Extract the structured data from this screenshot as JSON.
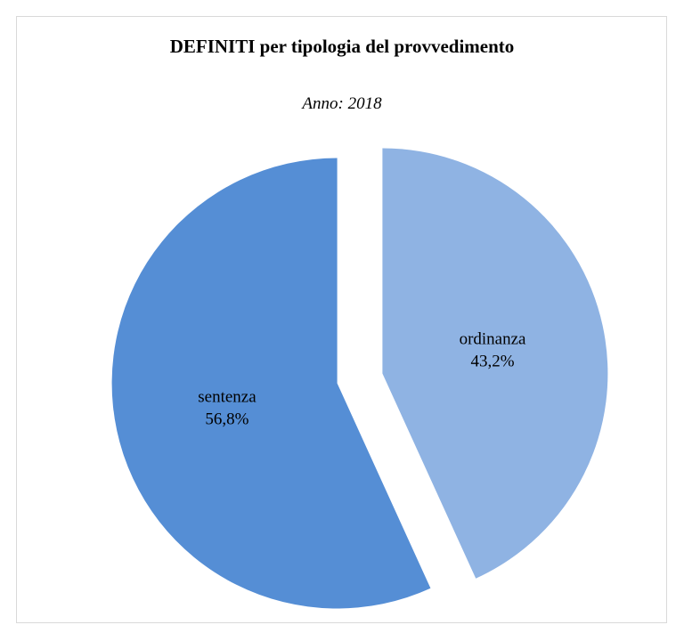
{
  "chart_data": {
    "type": "pie",
    "title": "DEFINITI per tipologia del provvedimento",
    "subtitle": "Anno: 2018",
    "categories": [
      "ordinanza",
      "sentenza"
    ],
    "values": [
      43.2,
      56.8
    ],
    "value_labels": [
      "43,2%",
      "56,8%"
    ],
    "colors": [
      "#8fb3e3",
      "#558ed5"
    ],
    "exploded": "all slices",
    "legend": "none (labels inside slices)"
  }
}
